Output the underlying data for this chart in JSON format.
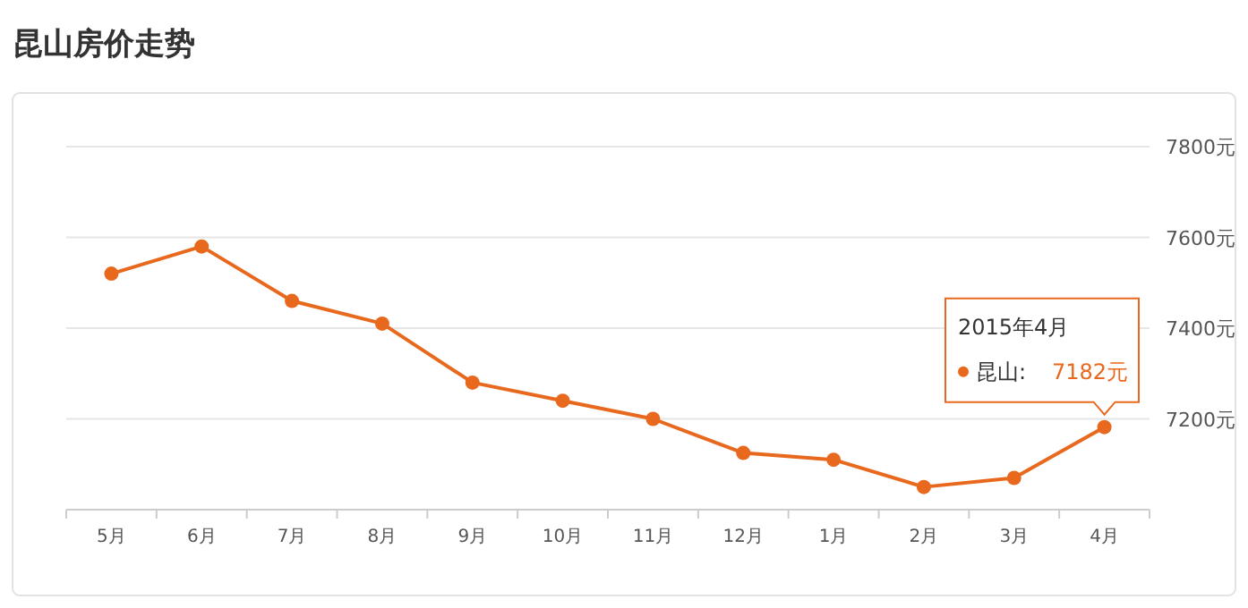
{
  "chart_data": {
    "type": "line",
    "title": "昆山房价走势",
    "categories": [
      "5月",
      "6月",
      "7月",
      "8月",
      "9月",
      "10月",
      "11月",
      "12月",
      "1月",
      "2月",
      "3月",
      "4月"
    ],
    "series": [
      {
        "color": "#e8691d",
        "values": [
          7520,
          7580,
          7460,
          7410,
          7280,
          7240,
          7200,
          7125,
          7110,
          7050,
          7070,
          7182
        ]
      }
    ],
    "ylim": [
      7000,
      7800
    ],
    "yticks": [
      {
        "value": 7000,
        "label": null
      },
      {
        "value": 7200,
        "label": "7200元"
      },
      {
        "value": 7400,
        "label": "7400元"
      },
      {
        "value": 7600,
        "label": "7600元"
      },
      {
        "value": 7800,
        "label": "7800元"
      }
    ],
    "grid": "y",
    "marker": "circle",
    "line_style": "solid",
    "annotations": [
      "2015年4月",
      "昆山:",
      "7182元"
    ]
  }
}
